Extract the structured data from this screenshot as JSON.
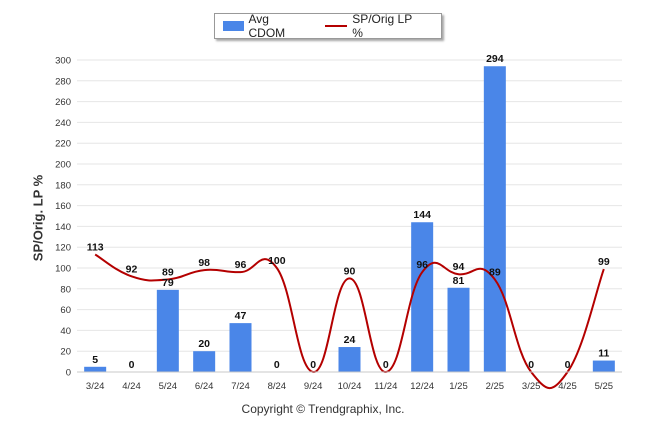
{
  "legend": {
    "bar_label": "Avg CDOM",
    "line_label": "SP/Orig LP %"
  },
  "copyright": "Copyright © Trendgraphix, Inc.",
  "colors": {
    "bar": "#4a86e8",
    "line": "#b40000",
    "grid": "#e6e6e6",
    "axis_text": "#333333"
  },
  "chart_data": {
    "type": "bar",
    "ylabel": "SP/Orig. LP %",
    "ylim": [
      0,
      300
    ],
    "yticks": [
      0,
      20,
      40,
      60,
      80,
      100,
      120,
      140,
      160,
      180,
      200,
      220,
      240,
      260,
      280,
      300
    ],
    "grid": true,
    "legend_position": "top-center",
    "categories": [
      "3/24",
      "4/24",
      "5/24",
      "6/24",
      "7/24",
      "8/24",
      "9/24",
      "10/24",
      "11/24",
      "12/24",
      "1/25",
      "2/25",
      "3/25",
      "4/25",
      "5/25"
    ],
    "series": [
      {
        "name": "Avg CDOM",
        "type": "bar",
        "values": [
          5,
          0,
          79,
          20,
          47,
          0,
          0,
          24,
          0,
          144,
          81,
          294,
          0,
          0,
          11
        ]
      },
      {
        "name": "SP/Orig LP %",
        "type": "line",
        "values": [
          113,
          92,
          89,
          98,
          96,
          100,
          0,
          90,
          0,
          96,
          94,
          89,
          0,
          0,
          99
        ]
      }
    ]
  }
}
